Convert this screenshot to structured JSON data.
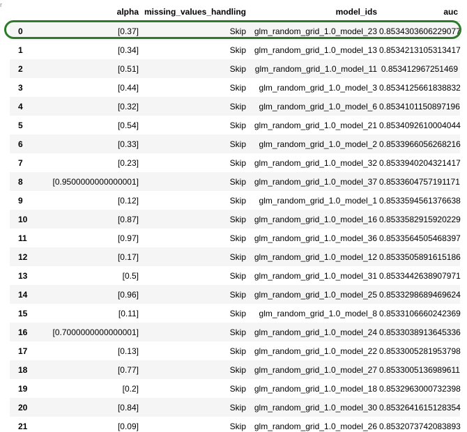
{
  "table": {
    "headers": [
      "",
      "alpha",
      "missing_values_handling",
      "model_ids",
      "auc"
    ],
    "rows": [
      {
        "idx": "0",
        "alpha": "[0.37]",
        "mvh": "Skip",
        "model": "glm_random_grid_1.0_model_23",
        "auc": "0.8534303606229077"
      },
      {
        "idx": "1",
        "alpha": "[0.34]",
        "mvh": "Skip",
        "model": "glm_random_grid_1.0_model_13",
        "auc": "0.8534213105313417"
      },
      {
        "idx": "2",
        "alpha": "[0.51]",
        "mvh": "Skip",
        "model": "glm_random_grid_1.0_model_11",
        "auc": "0.853412967251469"
      },
      {
        "idx": "3",
        "alpha": "[0.44]",
        "mvh": "Skip",
        "model": "glm_random_grid_1.0_model_3",
        "auc": "0.8534125661838832"
      },
      {
        "idx": "4",
        "alpha": "[0.32]",
        "mvh": "Skip",
        "model": "glm_random_grid_1.0_model_6",
        "auc": "0.8534101150897196"
      },
      {
        "idx": "5",
        "alpha": "[0.54]",
        "mvh": "Skip",
        "model": "glm_random_grid_1.0_model_21",
        "auc": "0.8534092610004044"
      },
      {
        "idx": "6",
        "alpha": "[0.33]",
        "mvh": "Skip",
        "model": "glm_random_grid_1.0_model_2",
        "auc": "0.8533966056268216"
      },
      {
        "idx": "7",
        "alpha": "[0.23]",
        "mvh": "Skip",
        "model": "glm_random_grid_1.0_model_32",
        "auc": "0.8533940204321417"
      },
      {
        "idx": "8",
        "alpha": "[0.9500000000000001]",
        "mvh": "Skip",
        "model": "glm_random_grid_1.0_model_37",
        "auc": "0.8533604757191171"
      },
      {
        "idx": "9",
        "alpha": "[0.12]",
        "mvh": "Skip",
        "model": "glm_random_grid_1.0_model_1",
        "auc": "0.8533594561376638"
      },
      {
        "idx": "10",
        "alpha": "[0.87]",
        "mvh": "Skip",
        "model": "glm_random_grid_1.0_model_16",
        "auc": "0.8533582915920229"
      },
      {
        "idx": "11",
        "alpha": "[0.97]",
        "mvh": "Skip",
        "model": "glm_random_grid_1.0_model_36",
        "auc": "0.8533564505468397"
      },
      {
        "idx": "12",
        "alpha": "[0.17]",
        "mvh": "Skip",
        "model": "glm_random_grid_1.0_model_12",
        "auc": "0.8533505891615186"
      },
      {
        "idx": "13",
        "alpha": "[0.5]",
        "mvh": "Skip",
        "model": "glm_random_grid_1.0_model_31",
        "auc": "0.8533442638907971"
      },
      {
        "idx": "14",
        "alpha": "[0.96]",
        "mvh": "Skip",
        "model": "glm_random_grid_1.0_model_25",
        "auc": "0.8533298689469624"
      },
      {
        "idx": "15",
        "alpha": "[0.11]",
        "mvh": "Skip",
        "model": "glm_random_grid_1.0_model_8",
        "auc": "0.8533106660242369"
      },
      {
        "idx": "16",
        "alpha": "[0.7000000000000001]",
        "mvh": "Skip",
        "model": "glm_random_grid_1.0_model_24",
        "auc": "0.8533038913645336"
      },
      {
        "idx": "17",
        "alpha": "[0.13]",
        "mvh": "Skip",
        "model": "glm_random_grid_1.0_model_22",
        "auc": "0.8533005281953798"
      },
      {
        "idx": "18",
        "alpha": "[0.77]",
        "mvh": "Skip",
        "model": "glm_random_grid_1.0_model_27",
        "auc": "0.8533005136989611"
      },
      {
        "idx": "19",
        "alpha": "[0.2]",
        "mvh": "Skip",
        "model": "glm_random_grid_1.0_model_18",
        "auc": "0.8532963000732398"
      },
      {
        "idx": "20",
        "alpha": "[0.84]",
        "mvh": "Skip",
        "model": "glm_random_grid_1.0_model_30",
        "auc": "0.8532641615128354"
      },
      {
        "idx": "21",
        "alpha": "[0.09]",
        "mvh": "Skip",
        "model": "glm_random_grid_1.0_model_26",
        "auc": "0.8532073742083893"
      }
    ]
  },
  "colors": {
    "highlight_border": "#2d7a2a",
    "stripe": "#f5f5f5"
  }
}
